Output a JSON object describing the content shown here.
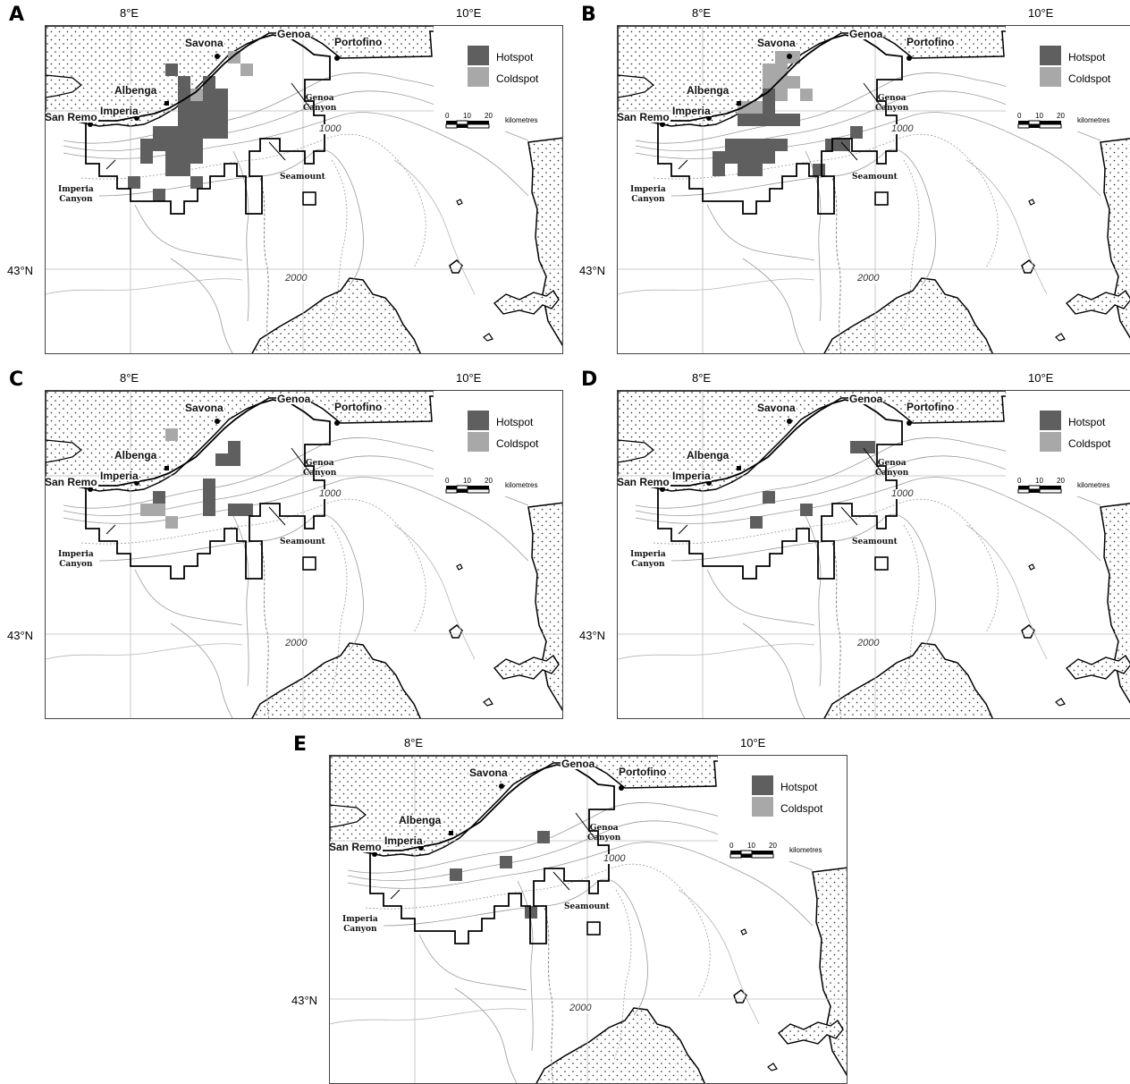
{
  "colors": {
    "hotspot": "#5f5f5f",
    "coldspot": "#a8a8a8",
    "land_pattern": "dotted",
    "boundary": "#000000",
    "contours": "#9a9a9a"
  },
  "coordinates": {
    "lon_left": "8°E",
    "lon_right": "10°E",
    "lat": "43°N"
  },
  "places": {
    "san_remo": "San Remo",
    "imperia": "Imperia",
    "albenga": "Albenga",
    "savona": "Savona",
    "genoa": "Genoa",
    "portofino": "Portofino"
  },
  "features": {
    "imperia_canyon": "Imperia\nCanyon",
    "genoa_canyon": "Genoa\nCanyon",
    "seamount": "Seamount"
  },
  "depths": {
    "d1000": "1000",
    "d2000": "2000"
  },
  "legend": {
    "hotspot": "Hotspot",
    "coldspot": "Coldspot",
    "scale_ticks": [
      "0",
      "10",
      "20"
    ],
    "scale_unit": "kilometres"
  },
  "panels": [
    {
      "label": "A",
      "cells": [
        [
          8,
          1,
          "c"
        ],
        [
          3,
          2,
          "h"
        ],
        [
          9,
          2,
          "c"
        ],
        [
          4,
          3,
          "h"
        ],
        [
          6,
          3,
          "h"
        ],
        [
          4,
          4,
          "h"
        ],
        [
          5,
          4,
          "c"
        ],
        [
          6,
          4,
          "h"
        ],
        [
          7,
          4,
          "h"
        ],
        [
          4,
          5,
          "h"
        ],
        [
          5,
          5,
          "h"
        ],
        [
          6,
          5,
          "h"
        ],
        [
          7,
          5,
          "h"
        ],
        [
          4,
          6,
          "h"
        ],
        [
          5,
          6,
          "h"
        ],
        [
          6,
          6,
          "h"
        ],
        [
          7,
          6,
          "h"
        ],
        [
          2,
          7,
          "h"
        ],
        [
          3,
          7,
          "h"
        ],
        [
          4,
          7,
          "h"
        ],
        [
          5,
          7,
          "h"
        ],
        [
          6,
          7,
          "h"
        ],
        [
          7,
          7,
          "h"
        ],
        [
          1,
          8,
          "h"
        ],
        [
          2,
          8,
          "h"
        ],
        [
          3,
          8,
          "h"
        ],
        [
          4,
          8,
          "h"
        ],
        [
          5,
          8,
          "h"
        ],
        [
          1,
          9,
          "h"
        ],
        [
          3,
          9,
          "h"
        ],
        [
          4,
          9,
          "h"
        ],
        [
          5,
          9,
          "h"
        ],
        [
          3,
          10,
          "h"
        ],
        [
          4,
          10,
          "h"
        ],
        [
          0,
          11,
          "h"
        ],
        [
          5,
          11,
          "h"
        ],
        [
          2,
          12,
          "h"
        ]
      ]
    },
    {
      "label": "B",
      "cells": [
        [
          6,
          1,
          "c"
        ],
        [
          7,
          1,
          "c"
        ],
        [
          5,
          2,
          "c"
        ],
        [
          6,
          2,
          "c"
        ],
        [
          5,
          3,
          "c"
        ],
        [
          6,
          3,
          "c"
        ],
        [
          7,
          3,
          "c"
        ],
        [
          5,
          4,
          "h"
        ],
        [
          6,
          4,
          "c"
        ],
        [
          8,
          4,
          "c"
        ],
        [
          3,
          5,
          "c"
        ],
        [
          4,
          5,
          "c"
        ],
        [
          5,
          5,
          "h"
        ],
        [
          3,
          6,
          "h"
        ],
        [
          4,
          6,
          "h"
        ],
        [
          5,
          6,
          "h"
        ],
        [
          6,
          6,
          "h"
        ],
        [
          7,
          6,
          "h"
        ],
        [
          12,
          7,
          "h"
        ],
        [
          2,
          8,
          "h"
        ],
        [
          3,
          8,
          "h"
        ],
        [
          4,
          8,
          "h"
        ],
        [
          5,
          8,
          "h"
        ],
        [
          6,
          8,
          "h"
        ],
        [
          10,
          8,
          "h"
        ],
        [
          11,
          8,
          "h"
        ],
        [
          1,
          9,
          "h"
        ],
        [
          2,
          9,
          "h"
        ],
        [
          3,
          9,
          "h"
        ],
        [
          4,
          9,
          "h"
        ],
        [
          5,
          9,
          "h"
        ],
        [
          1,
          10,
          "h"
        ],
        [
          3,
          10,
          "h"
        ],
        [
          4,
          10,
          "h"
        ],
        [
          9,
          10,
          "h"
        ]
      ]
    },
    {
      "label": "C",
      "cells": [
        [
          3,
          2,
          "c"
        ],
        [
          8,
          3,
          "h"
        ],
        [
          7,
          4,
          "h"
        ],
        [
          8,
          4,
          "h"
        ],
        [
          6,
          6,
          "h"
        ],
        [
          2,
          7,
          "h"
        ],
        [
          1,
          8,
          "c"
        ],
        [
          2,
          8,
          "c"
        ],
        [
          6,
          7,
          "h"
        ],
        [
          6,
          8,
          "h"
        ],
        [
          8,
          8,
          "h"
        ],
        [
          9,
          8,
          "h"
        ],
        [
          3,
          9,
          "c"
        ]
      ]
    },
    {
      "label": "D",
      "cells": [
        [
          12,
          3,
          "h"
        ],
        [
          13,
          3,
          "h"
        ],
        [
          5,
          7,
          "h"
        ],
        [
          8,
          8,
          "h"
        ],
        [
          4,
          9,
          "h"
        ]
      ]
    },
    {
      "label": "E",
      "cells": [
        [
          10,
          5,
          "h"
        ],
        [
          7,
          7,
          "h"
        ],
        [
          3,
          8,
          "h"
        ],
        [
          9,
          11,
          "h"
        ]
      ]
    }
  ]
}
